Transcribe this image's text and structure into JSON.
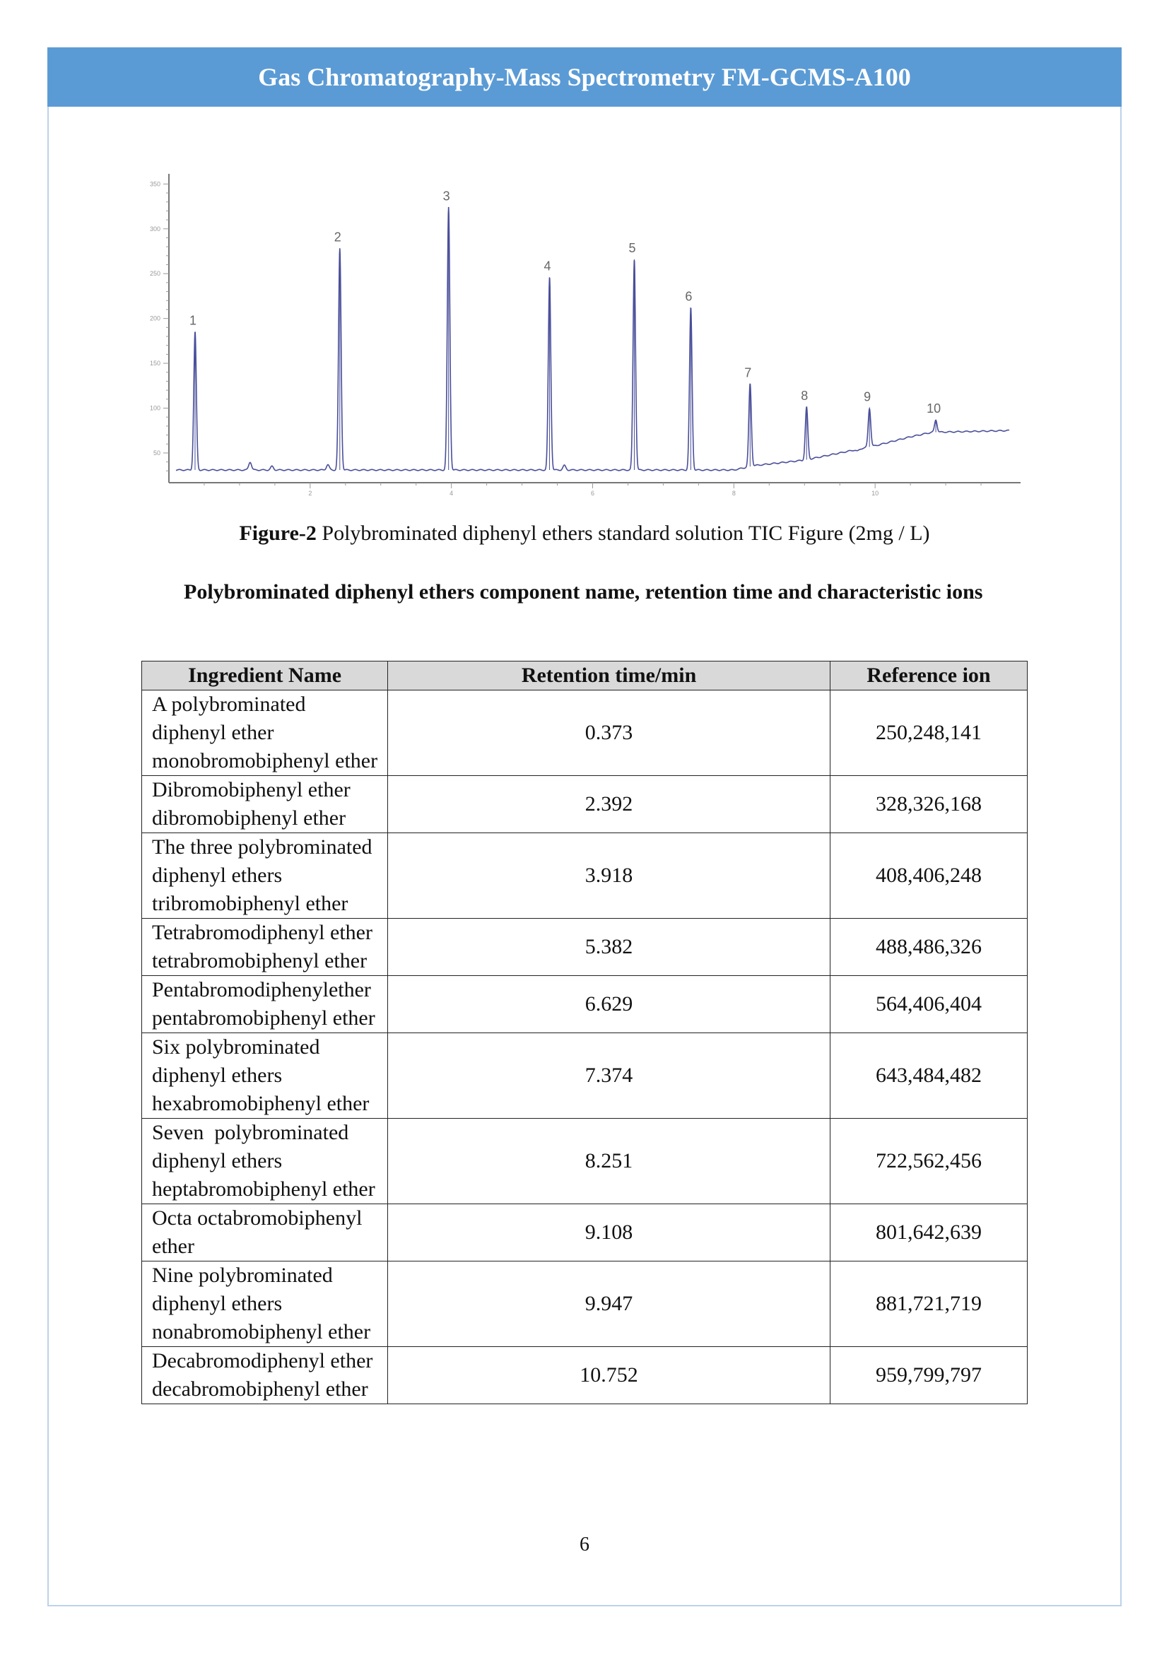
{
  "header": {
    "title": "Gas Chromatography-Mass Spectrometry FM-GCMS-A100",
    "color": "#5b9bd5"
  },
  "figure": {
    "caption_label": "Figure-2",
    "caption_text": " Polybrominated diphenyl ethers standard solution TIC Figure (2mg / L)"
  },
  "chart_data": {
    "type": "line",
    "title": "",
    "xlabel": "",
    "ylabel": "",
    "xlim": [
      0,
      12
    ],
    "ylim": [
      20,
      355
    ],
    "x_ticks": [
      "2",
      "4",
      "6",
      "8",
      "10"
    ],
    "y_ticks": [
      "50",
      "100",
      "150",
      "200",
      "250",
      "300",
      "350"
    ],
    "grid": false,
    "line_color": "#4a4f9a",
    "peaks": [
      {
        "label": "1",
        "x": 0.37,
        "y": 185
      },
      {
        "label": "2",
        "x": 2.42,
        "y": 278
      },
      {
        "label": "3",
        "x": 3.96,
        "y": 324
      },
      {
        "label": "4",
        "x": 5.39,
        "y": 246
      },
      {
        "label": "5",
        "x": 6.59,
        "y": 266
      },
      {
        "label": "6",
        "x": 7.39,
        "y": 212
      },
      {
        "label": "7",
        "x": 8.23,
        "y": 127
      },
      {
        "label": "8",
        "x": 9.03,
        "y": 101
      },
      {
        "label": "9",
        "x": 9.92,
        "y": 100
      },
      {
        "label": "10",
        "x": 10.86,
        "y": 87
      }
    ],
    "minor_peaks": [
      {
        "x": 1.15,
        "y": 40
      },
      {
        "x": 1.46,
        "y": 35
      },
      {
        "x": 2.25,
        "y": 37
      },
      {
        "x": 5.6,
        "y": 36
      },
      {
        "x": 9.75,
        "y": 52
      }
    ],
    "baseline": [
      [
        0,
        31
      ],
      [
        8.0,
        31
      ],
      [
        8.3,
        36
      ],
      [
        9.0,
        42
      ],
      [
        9.5,
        50
      ],
      [
        10.0,
        58
      ],
      [
        10.5,
        68
      ],
      [
        10.8,
        73
      ],
      [
        11.9,
        75
      ]
    ]
  },
  "section": {
    "heading": "Polybrominated diphenyl ethers component name, retention time and characteristic ions"
  },
  "table": {
    "headers": [
      "Ingredient Name",
      "Retention time/min",
      "Reference ion"
    ],
    "rows": [
      {
        "name": [
          "A polybrominated",
          "diphenyl ether",
          "monobromobiphenyl ether"
        ],
        "rt": "0.373",
        "ion": "250,248,141"
      },
      {
        "name": [
          "Dibromobiphenyl ether",
          "dibromobiphenyl ether"
        ],
        "rt": "2.392",
        "ion": "328,326,168"
      },
      {
        "name": [
          "The three polybrominated",
          "diphenyl ethers",
          "tribromobiphenyl ether"
        ],
        "rt": "3.918",
        "ion": "408,406,248"
      },
      {
        "name": [
          "Tetrabromodiphenyl ether",
          "tetrabromobiphenyl ether"
        ],
        "rt": "5.382",
        "ion": "488,486,326"
      },
      {
        "name": [
          "Pentabromodiphenylether",
          "pentabromobiphenyl ether"
        ],
        "rt": "6.629",
        "ion": "564,406,404"
      },
      {
        "name": [
          "Six polybrominated",
          "diphenyl ethers",
          "hexabromobiphenyl ether"
        ],
        "rt": "7.374",
        "ion": "643,484,482"
      },
      {
        "name": [
          "Seven  polybrominated",
          "diphenyl ethers",
          "heptabromobiphenyl ether"
        ],
        "rt": "8.251",
        "ion": "722,562,456"
      },
      {
        "name": [
          "Octa octabromobiphenyl",
          "ether"
        ],
        "rt": "9.108",
        "ion": "801,642,639"
      },
      {
        "name": [
          "Nine polybrominated",
          "diphenyl ethers",
          "nonabromobiphenyl ether"
        ],
        "rt": "9.947",
        "ion": "881,721,719"
      },
      {
        "name": [
          "Decabromodiphenyl ether",
          "decabromobiphenyl ether"
        ],
        "rt": "10.752",
        "ion": "959,799,797"
      }
    ]
  },
  "footer": {
    "page_number": "6"
  }
}
